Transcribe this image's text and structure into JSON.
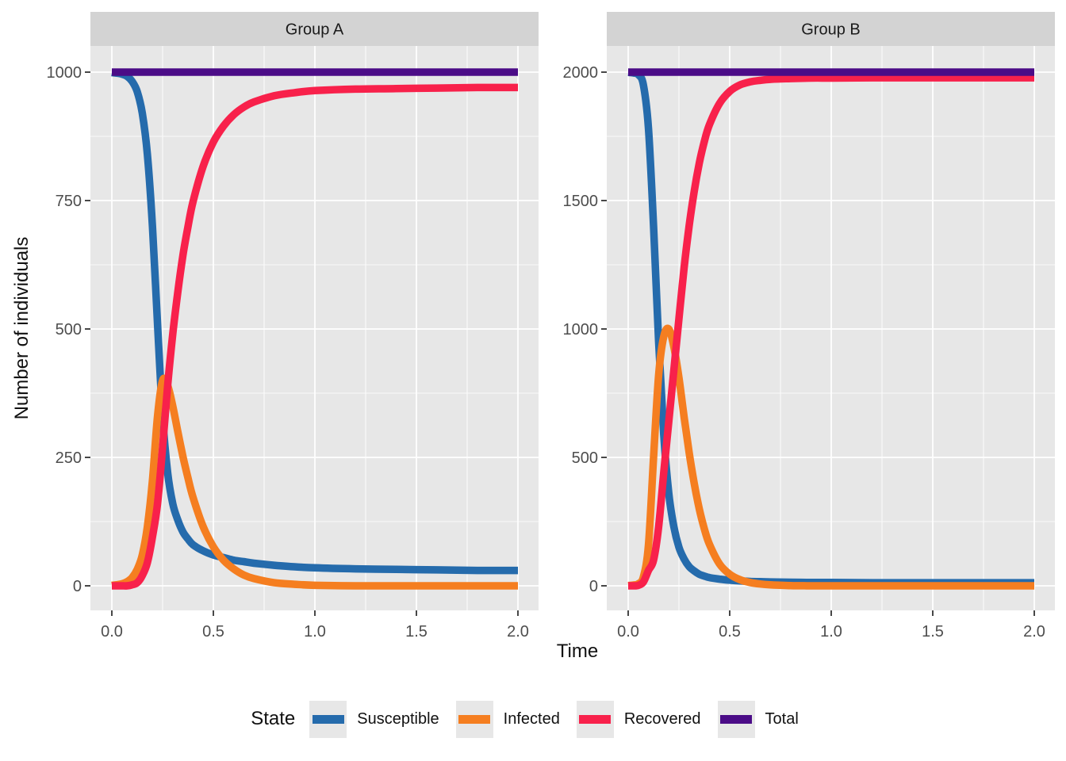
{
  "figure": {
    "background": "#FFFFFF"
  },
  "axes": {
    "x_title": "Time",
    "y_title": "Number of individuals"
  },
  "legend": {
    "title": "State",
    "position": "bottom",
    "items": [
      {
        "label": "Susceptible",
        "color": "#256BAC"
      },
      {
        "label": "Infected",
        "color": "#F57E20"
      },
      {
        "label": "Recovered",
        "color": "#F8214B"
      },
      {
        "label": "Total",
        "color": "#4B0C87"
      }
    ]
  },
  "theme": {
    "panel_background": "#E7E7E7",
    "strip_background": "#D3D3D3",
    "grid_color": "#FFFFFF",
    "tick_color": "#333333",
    "tick_label_color": "#4D4D4D",
    "strip_text_color": "#1A1A1A"
  },
  "chart_data": {
    "type": "line",
    "title": "",
    "xlabel": "Time",
    "ylabel": "Number of individuals",
    "grid": true,
    "legend_position": "bottom",
    "xlim": [
      -0.1,
      2.1
    ],
    "x": [
      0,
      0.025,
      0.05,
      0.075,
      0.1,
      0.125,
      0.15,
      0.175,
      0.2,
      0.225,
      0.25,
      0.275,
      0.3,
      0.325,
      0.35,
      0.375,
      0.4,
      0.45,
      0.5,
      0.55,
      0.6,
      0.65,
      0.7,
      0.8,
      0.9,
      1,
      1.2,
      1.4,
      1.6,
      1.8,
      2
    ],
    "facets": [
      {
        "label": "Group A",
        "ylim": [
          -52,
          1052
        ],
        "x_ticks": [
          0,
          0.5,
          1,
          1.5,
          2
        ],
        "x_tick_labels": [
          "0.0",
          "0.5",
          "1.0",
          "1.5",
          "2.0"
        ],
        "y_ticks": [
          0,
          250,
          500,
          750,
          1000
        ],
        "y_tick_labels": [
          "0",
          "250",
          "500",
          "750",
          "1000"
        ],
        "series": [
          {
            "name": "Susceptible",
            "color": "#256BAC",
            "values": [
              999,
              998,
              996,
              992,
              982,
              962,
              920,
              840,
              700,
              510,
              330,
              220,
              160,
              128,
              105,
              91,
              80,
              68,
              60,
              55,
              50,
              47,
              44,
              40,
              37,
              35,
              33,
              32,
              31,
              30,
              30
            ]
          },
          {
            "name": "Infected",
            "color": "#F57E20",
            "values": [
              1,
              2,
              4,
              8,
              16,
              32,
              60,
              115,
              205,
              330,
              400,
              390,
              350,
              300,
              252,
              210,
              172,
              115,
              76,
              50,
              33,
              21,
              14,
              6,
              3,
              1,
              0,
              0,
              0,
              0,
              0
            ]
          },
          {
            "name": "Recovered",
            "color": "#F8214B",
            "values": [
              0,
              0,
              0,
              0,
              2,
              6,
              20,
              45,
              95,
              160,
              270,
              390,
              490,
              572,
              643,
              699,
              748,
              817,
              864,
              895,
              917,
              932,
              942,
              954,
              960,
              964,
              967,
              968,
              969,
              970,
              970
            ]
          },
          {
            "name": "Total",
            "color": "#4B0C87",
            "values": [
              1000,
              1000,
              1000,
              1000,
              1000,
              1000,
              1000,
              1000,
              1000,
              1000,
              1000,
              1000,
              1000,
              1000,
              1000,
              1000,
              1000,
              1000,
              1000,
              1000,
              1000,
              1000,
              1000,
              1000,
              1000,
              1000,
              1000,
              1000,
              1000,
              1000,
              1000
            ]
          }
        ]
      },
      {
        "label": "Group B",
        "ylim": [
          -104,
          2104
        ],
        "x_ticks": [
          0,
          0.5,
          1,
          1.5,
          2
        ],
        "x_tick_labels": [
          "0.0",
          "0.5",
          "1.0",
          "1.5",
          "2.0"
        ],
        "y_ticks": [
          0,
          500,
          1000,
          1500,
          2000
        ],
        "y_tick_labels": [
          "0",
          "500",
          "1000",
          "1500",
          "2000"
        ],
        "series": [
          {
            "name": "Susceptible",
            "color": "#256BAC",
            "values": [
              1999,
              1997,
              1990,
              1950,
              1780,
              1400,
              950,
              590,
              360,
              230,
              150,
              105,
              75,
              58,
              45,
              38,
              32,
              26,
              22,
              19,
              17,
              16,
              15,
              14,
              13,
              13,
              12,
              12,
              12,
              12,
              12
            ]
          },
          {
            "name": "Infected",
            "color": "#F57E20",
            "values": [
              1,
              3,
              8,
              35,
              160,
              500,
              820,
              970,
              1000,
              930,
              810,
              660,
              520,
              400,
              300,
              222,
              162,
              85,
              45,
              24,
              13,
              7,
              4,
              1,
              0,
              0,
              0,
              0,
              0,
              0,
              0
            ]
          },
          {
            "name": "Recovered",
            "color": "#F8214B",
            "values": [
              0,
              0,
              2,
              15,
              60,
              100,
              230,
              440,
              640,
              840,
              1040,
              1235,
              1400,
              1535,
              1645,
              1730,
              1795,
              1878,
              1925,
              1950,
              1962,
              1968,
              1972,
              1975,
              1977,
              1977,
              1978,
              1978,
              1978,
              1978,
              1978
            ]
          },
          {
            "name": "Total",
            "color": "#4B0C87",
            "values": [
              2000,
              2000,
              2000,
              2000,
              2000,
              2000,
              2000,
              2000,
              2000,
              2000,
              2000,
              2000,
              2000,
              2000,
              2000,
              2000,
              2000,
              2000,
              2000,
              2000,
              2000,
              2000,
              2000,
              2000,
              2000,
              2000,
              2000,
              2000,
              2000,
              2000,
              2000
            ]
          }
        ]
      }
    ]
  }
}
